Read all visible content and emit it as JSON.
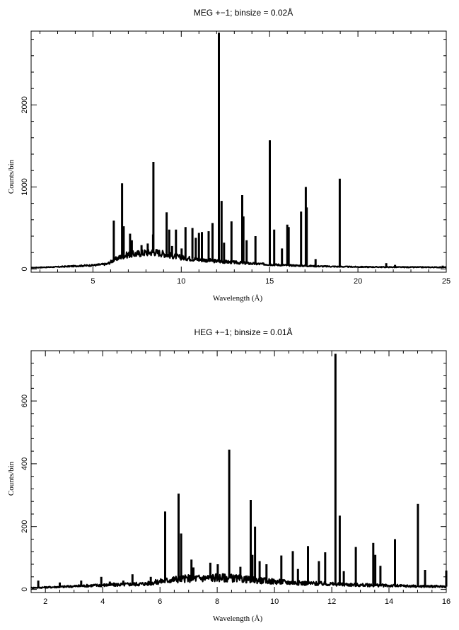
{
  "chart_data": [
    {
      "type": "line",
      "title": "MEG +−1; binsize = 0.02Å",
      "xlabel": "Wavelength (Å)",
      "ylabel": "Counts/bin",
      "xlim": [
        1.5,
        25
      ],
      "ylim": [
        -40,
        2900
      ],
      "x_ticks": [
        5,
        10,
        15,
        20,
        25
      ],
      "y_ticks": [
        0,
        1000,
        2000
      ],
      "grid": false,
      "continuum": [
        [
          1.5,
          15
        ],
        [
          3,
          25
        ],
        [
          4,
          35
        ],
        [
          5,
          45
        ],
        [
          5.8,
          60
        ],
        [
          6.2,
          110
        ],
        [
          6.6,
          150
        ],
        [
          7.0,
          175
        ],
        [
          7.5,
          185
        ],
        [
          8.0,
          200
        ],
        [
          8.5,
          205
        ],
        [
          9.0,
          185
        ],
        [
          9.5,
          160
        ],
        [
          10,
          140
        ],
        [
          11,
          115
        ],
        [
          12,
          95
        ],
        [
          13,
          80
        ],
        [
          14,
          65
        ],
        [
          15,
          55
        ],
        [
          16,
          45
        ],
        [
          17,
          38
        ],
        [
          18,
          32
        ],
        [
          19,
          28
        ],
        [
          20,
          25
        ],
        [
          22,
          22
        ],
        [
          25,
          20
        ]
      ],
      "lines": [
        {
          "x": 6.18,
          "y": 590
        },
        {
          "x": 6.65,
          "y": 1045
        },
        {
          "x": 6.74,
          "y": 520
        },
        {
          "x": 7.1,
          "y": 430
        },
        {
          "x": 7.2,
          "y": 350
        },
        {
          "x": 7.75,
          "y": 290
        },
        {
          "x": 8.1,
          "y": 310
        },
        {
          "x": 8.4,
          "y": 420
        },
        {
          "x": 8.42,
          "y": 1305
        },
        {
          "x": 9.17,
          "y": 690
        },
        {
          "x": 9.32,
          "y": 480
        },
        {
          "x": 9.48,
          "y": 280
        },
        {
          "x": 9.7,
          "y": 480
        },
        {
          "x": 10.02,
          "y": 250
        },
        {
          "x": 10.24,
          "y": 510
        },
        {
          "x": 10.63,
          "y": 500
        },
        {
          "x": 10.82,
          "y": 380
        },
        {
          "x": 11.0,
          "y": 440
        },
        {
          "x": 11.17,
          "y": 450
        },
        {
          "x": 11.55,
          "y": 460
        },
        {
          "x": 11.77,
          "y": 560
        },
        {
          "x": 12.13,
          "y": 2880
        },
        {
          "x": 12.28,
          "y": 830
        },
        {
          "x": 12.42,
          "y": 320
        },
        {
          "x": 12.84,
          "y": 580
        },
        {
          "x": 13.45,
          "y": 900
        },
        {
          "x": 13.52,
          "y": 640
        },
        {
          "x": 13.7,
          "y": 350
        },
        {
          "x": 14.2,
          "y": 400
        },
        {
          "x": 15.01,
          "y": 1570
        },
        {
          "x": 15.26,
          "y": 480
        },
        {
          "x": 15.7,
          "y": 250
        },
        {
          "x": 16.0,
          "y": 540
        },
        {
          "x": 16.08,
          "y": 510
        },
        {
          "x": 16.78,
          "y": 700
        },
        {
          "x": 17.05,
          "y": 1000
        },
        {
          "x": 17.1,
          "y": 750
        },
        {
          "x": 17.6,
          "y": 120
        },
        {
          "x": 18.97,
          "y": 1100
        },
        {
          "x": 21.6,
          "y": 70
        },
        {
          "x": 22.1,
          "y": 50
        },
        {
          "x": 24.8,
          "y": 40
        }
      ]
    },
    {
      "type": "line",
      "title": "HEG +−1; binsize = 0.01Å",
      "xlabel": "Wavelength (Å)",
      "ylabel": "Counts/bin",
      "xlim": [
        1.5,
        16
      ],
      "ylim": [
        -10,
        760
      ],
      "x_ticks": [
        2,
        4,
        6,
        8,
        10,
        12,
        14,
        16
      ],
      "y_ticks": [
        0,
        200,
        400,
        600
      ],
      "grid": false,
      "continuum": [
        [
          1.5,
          5
        ],
        [
          2.5,
          8
        ],
        [
          3.5,
          12
        ],
        [
          4.5,
          15
        ],
        [
          5.5,
          18
        ],
        [
          6.0,
          25
        ],
        [
          6.5,
          32
        ],
        [
          7.0,
          35
        ],
        [
          7.5,
          36
        ],
        [
          8.0,
          38
        ],
        [
          8.5,
          36
        ],
        [
          9.0,
          32
        ],
        [
          10,
          25
        ],
        [
          11,
          20
        ],
        [
          12,
          17
        ],
        [
          13,
          14
        ],
        [
          14,
          12
        ],
        [
          15,
          10
        ],
        [
          16,
          9
        ]
      ],
      "lines": [
        {
          "x": 1.75,
          "y": 28
        },
        {
          "x": 2.5,
          "y": 22
        },
        {
          "x": 3.25,
          "y": 28
        },
        {
          "x": 3.95,
          "y": 40
        },
        {
          "x": 4.25,
          "y": 25
        },
        {
          "x": 4.72,
          "y": 28
        },
        {
          "x": 5.04,
          "y": 48
        },
        {
          "x": 5.68,
          "y": 40
        },
        {
          "x": 6.18,
          "y": 248
        },
        {
          "x": 6.65,
          "y": 305
        },
        {
          "x": 6.74,
          "y": 178
        },
        {
          "x": 7.1,
          "y": 95
        },
        {
          "x": 7.17,
          "y": 70
        },
        {
          "x": 7.76,
          "y": 85
        },
        {
          "x": 8.02,
          "y": 80
        },
        {
          "x": 8.42,
          "y": 445
        },
        {
          "x": 8.81,
          "y": 72
        },
        {
          "x": 9.17,
          "y": 285
        },
        {
          "x": 9.23,
          "y": 110
        },
        {
          "x": 9.32,
          "y": 200
        },
        {
          "x": 9.48,
          "y": 90
        },
        {
          "x": 9.72,
          "y": 80
        },
        {
          "x": 10.24,
          "y": 108
        },
        {
          "x": 10.64,
          "y": 122
        },
        {
          "x": 10.82,
          "y": 65
        },
        {
          "x": 11.17,
          "y": 138
        },
        {
          "x": 11.55,
          "y": 90
        },
        {
          "x": 11.77,
          "y": 118
        },
        {
          "x": 12.13,
          "y": 750
        },
        {
          "x": 12.28,
          "y": 235
        },
        {
          "x": 12.42,
          "y": 58
        },
        {
          "x": 12.84,
          "y": 135
        },
        {
          "x": 13.45,
          "y": 148
        },
        {
          "x": 13.52,
          "y": 110
        },
        {
          "x": 13.7,
          "y": 75
        },
        {
          "x": 14.21,
          "y": 160
        },
        {
          "x": 15.01,
          "y": 272
        },
        {
          "x": 15.26,
          "y": 62
        },
        {
          "x": 16.0,
          "y": 60
        }
      ]
    }
  ]
}
